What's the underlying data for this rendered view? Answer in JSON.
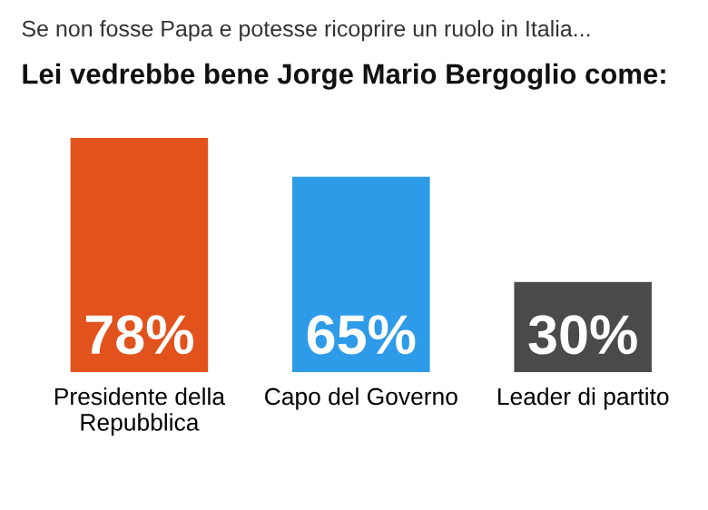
{
  "chart_data": {
    "type": "bar",
    "subtitle": "Se non fosse Papa e potesse ricoprire un ruolo in Italia...",
    "title": "Lei vedrebbe bene Jorge Mario Bergoglio come:",
    "categories": [
      "Presidente della\nRepubblica",
      "Capo del Governo",
      "Leader di partito"
    ],
    "values": [
      78,
      65,
      30
    ],
    "colors": [
      "#e2521c",
      "#2e9be8",
      "#4a4a4a"
    ],
    "value_labels": [
      "78%",
      "65%",
      "30%"
    ],
    "grid": false,
    "legend": false,
    "tick_labels": "x"
  }
}
